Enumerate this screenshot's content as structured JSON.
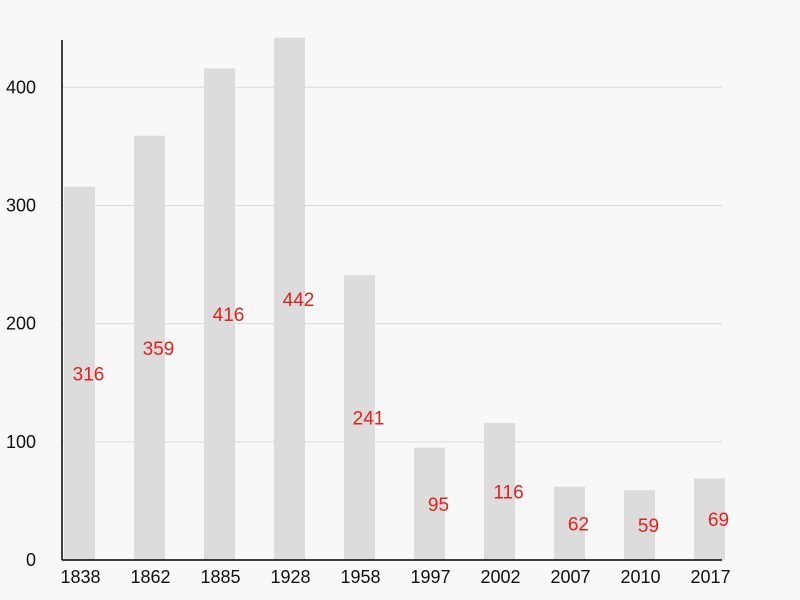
{
  "chart_data": {
    "type": "bar",
    "categories": [
      "1838",
      "1862",
      "1885",
      "1928",
      "1958",
      "1997",
      "2002",
      "2007",
      "2010",
      "2017"
    ],
    "values": [
      316,
      359,
      416,
      442,
      241,
      95,
      116,
      62,
      59,
      69
    ],
    "data_labels": [
      "316",
      "359",
      "416",
      "442",
      "241",
      "95",
      "116",
      "62",
      "59",
      "69"
    ],
    "title": "",
    "xlabel": "",
    "ylabel": "",
    "ylim": [
      0,
      440
    ],
    "yticks": [
      0,
      100,
      200,
      300,
      400
    ],
    "ytick_labels": [
      "0",
      "100",
      "200",
      "300",
      "400"
    ],
    "grid": true,
    "legend": "none",
    "colors": {
      "bar": "#dcdcdc",
      "data_label": "#e0221c",
      "grid": "#d9d9d9",
      "axis": "#000000",
      "background": "#f8f8f8"
    }
  }
}
